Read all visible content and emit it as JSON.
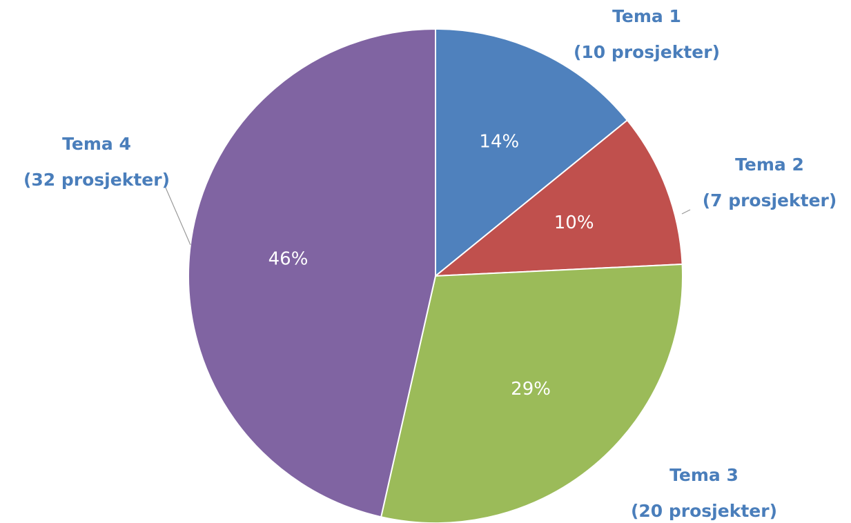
{
  "chart_data": {
    "type": "pie",
    "categories": [
      "Tema 1",
      "Tema 2",
      "Tema 3",
      "Tema 4"
    ],
    "category_details": [
      "(10 prosjekter)",
      "(7 prosjekter)",
      "(20 prosjekter)",
      "(32 prosjekter)"
    ],
    "values": [
      14,
      10,
      29,
      46
    ],
    "value_labels": [
      "14%",
      "10%",
      "29%",
      "46%"
    ],
    "colors": [
      "#4f81bd",
      "#c0504d",
      "#9bbb59",
      "#8064a2"
    ]
  }
}
